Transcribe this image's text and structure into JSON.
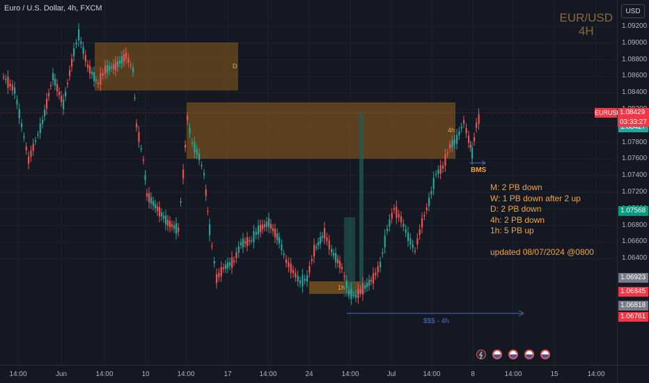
{
  "header": {
    "symbol_title": "Euro / U.S. Dollar, 4h, FXCM",
    "currency_button": "USD"
  },
  "watermark": {
    "pair": "EUR/USD",
    "timeframe": "4H"
  },
  "price_axis": {
    "ticks": [
      "1.09200",
      "1.09000",
      "1.08800",
      "1.08600",
      "1.08400",
      "1.08200",
      "1.08000",
      "1.07800",
      "1.07600",
      "1.07400",
      "1.07200",
      "1.07000",
      "1.06800",
      "1.06600",
      "1.06400"
    ],
    "tags": {
      "symbol": "EURUSD",
      "last_price": "1.08429",
      "countdown": "03:33:27",
      "bid": "1.08427",
      "ask": "1.07568",
      "level_1": "1.06923",
      "level_2": "1.06845",
      "level_3": "1.06818",
      "level_4": "1.06761"
    }
  },
  "time_axis": {
    "ticks": [
      "14:00",
      "Jun",
      "14:00",
      "10",
      "14:00",
      "17",
      "14:00",
      "24",
      "14:00",
      "Jul",
      "14:00",
      "8",
      "14:00",
      "15",
      "14:00"
    ]
  },
  "annotations": {
    "zone_d": "D",
    "zone_4h": "4h",
    "zone_1h": "1h",
    "bms": "BMS",
    "liquidity": "$$$ - 4h",
    "notes": [
      "M: 2 PB down",
      "W: 1 PB down after 2 up",
      "D: 2 PB  down",
      "4h: 2 PB down",
      "1h: 5 PB up",
      "",
      "updated 08/07/2024 @0800"
    ]
  },
  "colors": {
    "background": "#141823",
    "up": "#26a69a",
    "down": "#ef5350",
    "zone": "#8a5c1c",
    "note_text": "#f0a63d",
    "liquidity_line": "#4e6fb8"
  },
  "icons": [
    "lightning-icon",
    "us-flag-icon",
    "us-flag-icon",
    "us-flag-icon",
    "us-flag-icon"
  ]
}
